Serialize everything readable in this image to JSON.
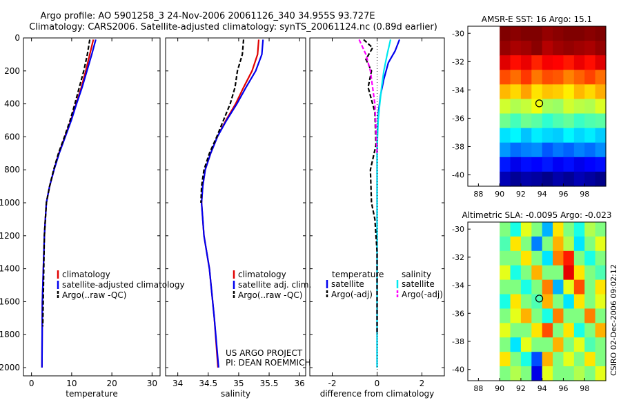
{
  "title_line1": "Argo profile: AO 5901258_3 24-Nov-2006 20061126_340 34.955S 93.727E",
  "title_line2": "Climatology: CARS2006. Satellite-adjusted climatology: synTS_20061124.nc (0.89d earlier)",
  "credit": "CSIRO 02-Dec-2006 09:02:12",
  "colors": {
    "climatology": "#e00000",
    "satellite": "#0000ee",
    "argo": "#000000",
    "argo_adj_sal": "#ff00ff",
    "sat_sal": "#00e8f0"
  },
  "chart_data": [
    {
      "id": "temperature",
      "type": "line",
      "xlabel": "temperature",
      "ylabel": "",
      "xlim": [
        -2,
        32
      ],
      "ylim": [
        0,
        2050
      ],
      "y_reversed": true,
      "xticks": [
        "0",
        "10",
        "20",
        "30"
      ],
      "xtick_values": [
        0,
        10,
        20,
        30
      ],
      "yticks": [
        "0",
        "200",
        "400",
        "600",
        "800",
        "1000",
        "1200",
        "1400",
        "1600",
        "1800",
        "2000"
      ],
      "ytick_values": [
        0,
        200,
        400,
        600,
        800,
        1000,
        1200,
        1400,
        1600,
        1800,
        2000
      ],
      "legend": [
        "climatology",
        "satellite-adjusted climatology",
        "Argo(..raw -QC)"
      ],
      "series": [
        {
          "name": "climatology",
          "color": "#e00000",
          "style": "solid",
          "x": [
            15.4,
            14.5,
            13.5,
            12.4,
            11.1,
            9.8,
            8.3,
            6.8,
            5.6,
            4.5,
            3.7,
            3.2,
            2.7,
            2.6
          ],
          "y": [
            10,
            100,
            200,
            300,
            400,
            500,
            600,
            700,
            800,
            900,
            1000,
            1200,
            1600,
            2000
          ]
        },
        {
          "name": "satellite-adjusted climatology",
          "color": "#0000ee",
          "style": "solid",
          "x": [
            16.0,
            15.0,
            13.8,
            12.6,
            11.2,
            9.9,
            8.4,
            6.9,
            5.6,
            4.5,
            3.7,
            3.2,
            2.7,
            2.6
          ],
          "y": [
            10,
            100,
            200,
            300,
            400,
            500,
            600,
            700,
            800,
            900,
            1000,
            1200,
            1600,
            2000
          ]
        },
        {
          "name": "Argo(..raw -QC)",
          "color": "#000000",
          "style": "dashed",
          "x": [
            14.5,
            13.9,
            13.0,
            11.9,
            10.8,
            9.6,
            8.2,
            6.7,
            5.5,
            4.5,
            3.7,
            3.2,
            2.8
          ],
          "y": [
            10,
            100,
            200,
            300,
            400,
            500,
            600,
            700,
            800,
            900,
            1000,
            1200,
            1750
          ]
        }
      ]
    },
    {
      "id": "salinity",
      "type": "line",
      "xlabel": "salinity",
      "ylabel": "",
      "xlim": [
        33.8,
        36.1
      ],
      "ylim": [
        0,
        2050
      ],
      "y_reversed": true,
      "xticks": [
        "34",
        "34.5",
        "35",
        "35.5",
        "36"
      ],
      "xtick_values": [
        34,
        34.5,
        35,
        35.5,
        36
      ],
      "legend": [
        "climatology",
        "satellite adj. clim.",
        "Argo(..raw -QC)"
      ],
      "annotation": [
        "US ARGO PROJECT",
        "PI: DEAN ROEMMICH"
      ],
      "series": [
        {
          "name": "climatology",
          "color": "#e00000",
          "style": "solid",
          "x": [
            35.33,
            35.31,
            35.22,
            35.08,
            34.95,
            34.79,
            34.65,
            34.54,
            34.45,
            34.41,
            34.39,
            34.43,
            34.52,
            34.6,
            34.66
          ],
          "y": [
            10,
            100,
            200,
            300,
            400,
            500,
            600,
            700,
            800,
            900,
            1000,
            1200,
            1400,
            1700,
            2000
          ]
        },
        {
          "name": "satellite adj. clim.",
          "color": "#0000ee",
          "style": "solid",
          "x": [
            35.4,
            35.38,
            35.28,
            35.12,
            34.97,
            34.8,
            34.65,
            34.54,
            34.45,
            34.41,
            34.39,
            34.43,
            34.52,
            34.6,
            34.67
          ],
          "y": [
            10,
            100,
            200,
            300,
            400,
            500,
            600,
            700,
            800,
            900,
            1000,
            1200,
            1400,
            1700,
            2000
          ]
        },
        {
          "name": "Argo(..raw -QC)",
          "color": "#000000",
          "style": "dashed",
          "x": [
            35.08,
            35.06,
            34.98,
            34.94,
            34.86,
            34.75,
            34.64,
            34.52,
            34.43,
            34.39,
            34.38
          ],
          "y": [
            10,
            100,
            200,
            300,
            400,
            500,
            600,
            700,
            800,
            900,
            1000
          ]
        }
      ]
    },
    {
      "id": "difference",
      "type": "line",
      "xlabel": "difference from climatology",
      "ylabel": "",
      "xlim": [
        -3,
        3
      ],
      "ylim": [
        0,
        2050
      ],
      "y_reversed": true,
      "xticks": [
        "-2",
        "0",
        "2"
      ],
      "xtick_values": [
        -2,
        0,
        2
      ],
      "legend_left": {
        "title": "temperature",
        "items": [
          "satellite",
          "Argo(-adj)"
        ]
      },
      "legend_right": {
        "title": "salinity",
        "items": [
          "satellite",
          "Argo(-adj)"
        ]
      },
      "series": [
        {
          "name": "temperature satellite",
          "color": "#0000ee",
          "style": "solid",
          "x": [
            1.0,
            0.8,
            0.5,
            0.3,
            0.15,
            0.06,
            0.02,
            0,
            0
          ],
          "y": [
            10,
            80,
            150,
            250,
            350,
            450,
            550,
            700,
            2000
          ]
        },
        {
          "name": "salinity satellite",
          "color": "#00e8f0",
          "style": "solid",
          "x": [
            0.6,
            0.45,
            0.3,
            0.2,
            0.12,
            0.05,
            0.02,
            0,
            0
          ],
          "y": [
            10,
            100,
            200,
            300,
            400,
            500,
            600,
            700,
            2000
          ]
        },
        {
          "name": "temperature Argo(-adj)",
          "color": "#000000",
          "style": "dashed",
          "x": [
            -0.6,
            -0.2,
            -0.5,
            -0.25,
            -0.4,
            -0.1,
            -0.05,
            -0.3,
            -0.25,
            -0.1,
            -0.05,
            0,
            0
          ],
          "y": [
            10,
            60,
            130,
            200,
            300,
            450,
            650,
            800,
            1000,
            1100,
            1200,
            1300,
            1800
          ]
        },
        {
          "name": "salinity Argo(-adj)",
          "color": "#ff00ff",
          "style": "dashed",
          "x": [
            -0.8,
            -0.5,
            -0.3,
            -0.2,
            -0.1,
            -0.05,
            0
          ],
          "y": [
            10,
            100,
            200,
            300,
            400,
            550,
            700
          ]
        }
      ]
    },
    {
      "id": "sst_map",
      "type": "heatmap",
      "title": "AMSR-E SST: 16 Argo: 15.1",
      "xlim": [
        87,
        100
      ],
      "ylim": [
        -40.8,
        -29.5
      ],
      "xticks": [
        "88",
        "90",
        "92",
        "94",
        "96",
        "98"
      ],
      "xtick_values": [
        88,
        90,
        92,
        94,
        96,
        98
      ],
      "yticks": [
        "-30",
        "-32",
        "-34",
        "-36",
        "-38",
        "-40"
      ],
      "ytick_values": [
        -30,
        -32,
        -34,
        -36,
        -38,
        -40
      ],
      "data_lon_range": [
        90,
        100
      ],
      "data_lat_range": [
        -40.8,
        -29.5
      ],
      "values": [
        [
          19.5,
          19.4,
          19.6,
          19.5,
          19.3,
          19.4,
          19.5,
          19.6,
          19.4,
          19.5
        ],
        [
          19.3,
          19.1,
          19.2,
          19.4,
          19.0,
          19.2,
          19.3,
          19.2,
          19.1,
          19.3
        ],
        [
          18.6,
          18.2,
          18.5,
          18.0,
          18.4,
          18.3,
          18.1,
          18.5,
          18.2,
          18.6
        ],
        [
          17.6,
          17.3,
          17.8,
          17.2,
          17.6,
          17.5,
          17.1,
          17.4,
          17.7,
          17.3
        ],
        [
          16.6,
          16.3,
          16.8,
          16.2,
          16.5,
          16.4,
          16.1,
          16.6,
          16.3,
          16.7
        ],
        [
          15.5,
          15.2,
          15.4,
          15.8,
          15.1,
          15.0,
          15.5,
          15.3,
          15.2,
          15.6
        ],
        [
          14.6,
          14.2,
          14.6,
          14.4,
          14.0,
          14.3,
          14.5,
          14.1,
          14.3,
          14.4
        ],
        [
          13.3,
          13.5,
          13.0,
          13.4,
          13.2,
          13.1,
          13.5,
          13.2,
          13.4,
          13.1
        ],
        [
          12.6,
          12.2,
          12.4,
          12.5,
          12.0,
          12.3,
          12.1,
          12.4,
          12.2,
          12.5
        ],
        [
          11.4,
          11.0,
          11.3,
          11.2,
          11.4,
          11.1,
          11.3,
          11.0,
          11.2,
          11.3
        ],
        [
          10.5,
          10.2,
          10.4,
          10.3,
          10.1,
          10.4,
          10.2,
          10.5,
          10.3,
          10.1
        ]
      ],
      "vmin": 10,
      "vmax": 19.5,
      "marker": {
        "lon": 93.73,
        "lat": -34.95
      }
    },
    {
      "id": "sla_map",
      "type": "heatmap",
      "title": "Altimetric SLA: -0.0095 Argo: -0.023",
      "xlim": [
        87,
        100
      ],
      "ylim": [
        -40.8,
        -29.5
      ],
      "xticks": [
        "88",
        "90",
        "92",
        "94",
        "96",
        "98"
      ],
      "xtick_values": [
        88,
        90,
        92,
        94,
        96,
        98
      ],
      "yticks": [
        "-30",
        "-32",
        "-34",
        "-36",
        "-38",
        "-40"
      ],
      "ytick_values": [
        -30,
        -32,
        -34,
        -36,
        -38,
        -40
      ],
      "data_lon_range": [
        90,
        100
      ],
      "data_lat_range": [
        -40.8,
        -29.5
      ],
      "values": [
        [
          0.0,
          -0.02,
          0.02,
          0.0,
          -0.04,
          0.03,
          0.0,
          -0.02,
          0.01,
          0.0
        ],
        [
          -0.01,
          0.03,
          0.0,
          -0.05,
          0.0,
          0.04,
          0.01,
          -0.03,
          0.0,
          0.02
        ],
        [
          0.0,
          0.0,
          0.03,
          0.0,
          -0.03,
          0.05,
          0.07,
          0.0,
          -0.02,
          0.0
        ],
        [
          0.02,
          -0.02,
          0.0,
          0.04,
          0.0,
          0.0,
          0.08,
          0.03,
          0.0,
          -0.01
        ],
        [
          0.0,
          0.0,
          -0.02,
          0.0,
          0.05,
          -0.04,
          0.02,
          0.06,
          0.0,
          0.03
        ],
        [
          -0.02,
          0.03,
          0.0,
          -0.01,
          0.04,
          0.0,
          -0.03,
          0.03,
          0.0,
          0.02
        ],
        [
          0.0,
          0.02,
          0.04,
          0.0,
          -0.02,
          0.05,
          0.0,
          0.0,
          0.05,
          0.0
        ],
        [
          0.02,
          0.0,
          0.0,
          0.03,
          0.06,
          0.0,
          0.03,
          -0.02,
          0.0,
          0.04
        ],
        [
          0.0,
          -0.03,
          0.02,
          0.0,
          0.0,
          0.04,
          0.0,
          0.02,
          -0.01,
          0.0
        ],
        [
          0.03,
          0.0,
          -0.02,
          -0.06,
          0.04,
          0.0,
          0.02,
          0.0,
          0.03,
          0.0
        ],
        [
          0.0,
          0.01,
          0.0,
          -0.08,
          0.02,
          0.0,
          0.0,
          0.01,
          0.0,
          0.02
        ]
      ],
      "vmin": -0.1,
      "vmax": 0.1,
      "marker": {
        "lon": 93.73,
        "lat": -34.95
      }
    }
  ]
}
